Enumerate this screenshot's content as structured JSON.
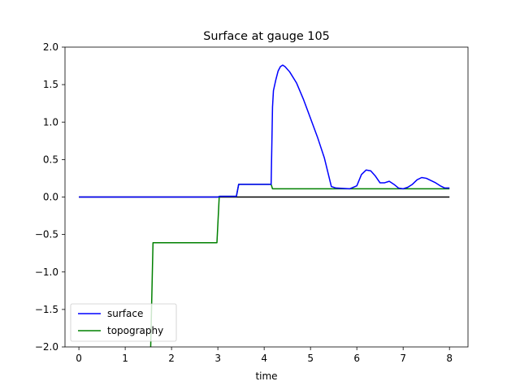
{
  "chart_data": {
    "type": "line",
    "title": "Surface at gauge 105",
    "xlabel": "time",
    "ylabel": "",
    "xlim": [
      -0.3,
      8.4
    ],
    "ylim": [
      -2.0,
      2.0
    ],
    "xticks": [
      0,
      1,
      2,
      3,
      4,
      5,
      6,
      7,
      8
    ],
    "xtick_labels": [
      "0",
      "1",
      "2",
      "3",
      "4",
      "5",
      "6",
      "7",
      "8"
    ],
    "yticks": [
      -2.0,
      -1.5,
      -1.0,
      -0.5,
      0.0,
      0.5,
      1.0,
      1.5,
      2.0
    ],
    "ytick_labels": [
      "−2.0",
      "−1.5",
      "−1.0",
      "−0.5",
      "0.0",
      "0.5",
      "1.0",
      "1.5",
      "2.0"
    ],
    "grid": false,
    "legend_position": "lower-left",
    "series": [
      {
        "name": "surface",
        "color": "#0000ff",
        "x": [
          0,
          0.5,
          1.0,
          1.5,
          2.0,
          2.5,
          3.0,
          3.05,
          3.4,
          3.45,
          4.15,
          4.18,
          4.2,
          4.25,
          4.3,
          4.35,
          4.4,
          4.45,
          4.55,
          4.7,
          4.85,
          5.0,
          5.15,
          5.3,
          5.45,
          5.55,
          5.7,
          5.85,
          6.0,
          6.1,
          6.2,
          6.3,
          6.4,
          6.5,
          6.6,
          6.7,
          6.8,
          6.9,
          7.0,
          7.1,
          7.2,
          7.3,
          7.4,
          7.5,
          7.6,
          7.7,
          7.8,
          7.9,
          8.0
        ],
        "y": [
          0.0,
          0.0,
          0.0,
          0.0,
          0.0,
          0.0,
          0.0,
          0.01,
          0.01,
          0.17,
          0.17,
          1.2,
          1.42,
          1.56,
          1.68,
          1.74,
          1.76,
          1.74,
          1.67,
          1.52,
          1.3,
          1.05,
          0.8,
          0.52,
          0.14,
          0.12,
          0.115,
          0.11,
          0.15,
          0.3,
          0.36,
          0.35,
          0.28,
          0.19,
          0.19,
          0.21,
          0.17,
          0.12,
          0.11,
          0.13,
          0.17,
          0.23,
          0.26,
          0.25,
          0.22,
          0.19,
          0.15,
          0.12,
          0.12
        ]
      },
      {
        "name": "topography",
        "color": "#008000",
        "x": [
          1.55,
          1.6,
          2.98,
          3.03,
          3.4,
          3.45,
          4.15,
          4.18,
          8.0
        ],
        "y": [
          -2.0,
          -0.61,
          -0.61,
          0.01,
          0.01,
          0.17,
          0.17,
          0.11,
          0.11
        ]
      }
    ],
    "reference_line": {
      "y": 0.0,
      "x": [
        0,
        8
      ],
      "color": "#000000"
    }
  }
}
